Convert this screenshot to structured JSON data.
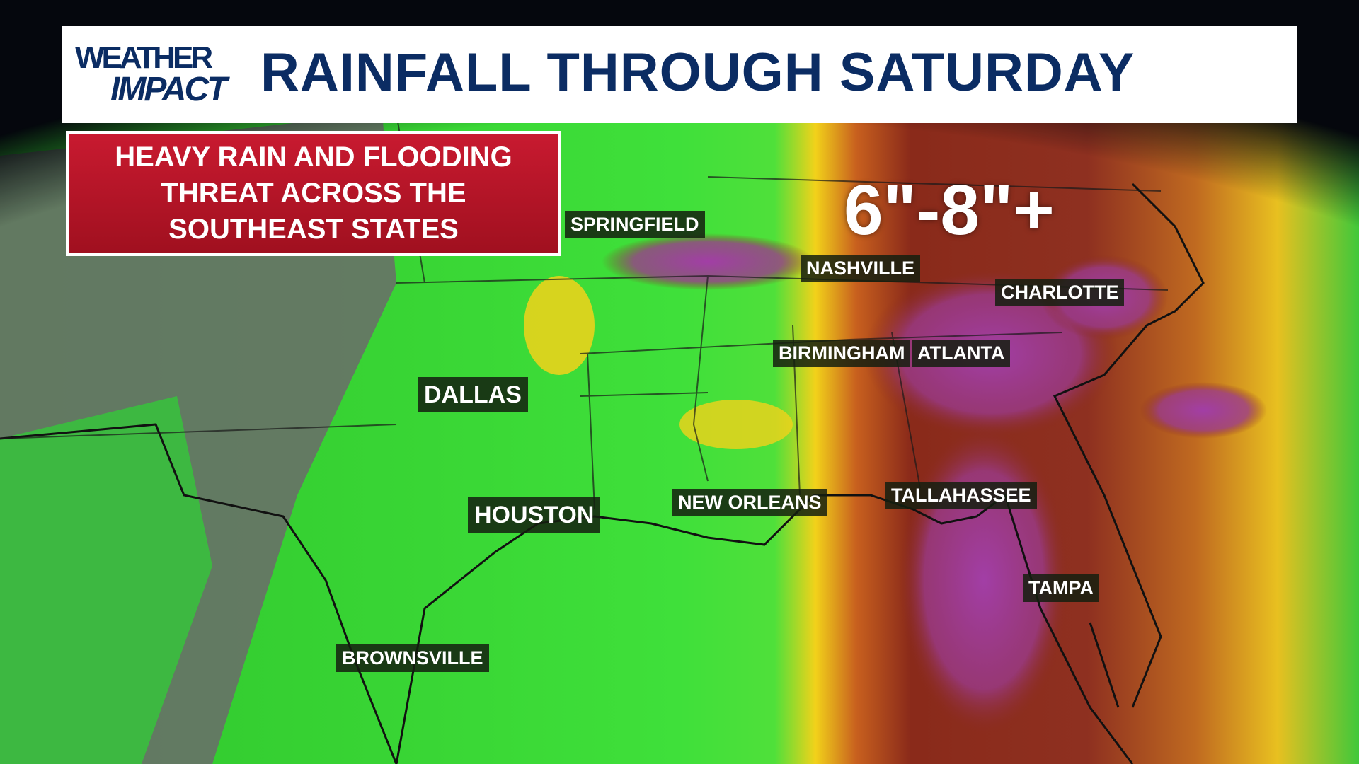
{
  "logo": {
    "line1": "WEATHER",
    "line2": "IMPACT"
  },
  "title": "RAINFALL THROUGH SATURDAY",
  "alert": {
    "lines": [
      "HEAVY RAIN AND FLOODING",
      "THREAT ACROSS THE",
      "SOUTHEAST STATES"
    ]
  },
  "rainfall_amount": "6\"-8\"+",
  "cities": [
    {
      "name": "SPRINGFIELD"
    },
    {
      "name": "NASHVILLE"
    },
    {
      "name": "CHARLOTTE"
    },
    {
      "name": "BIRMINGHAM"
    },
    {
      "name": "ATLANTA"
    },
    {
      "name": "DALLAS"
    },
    {
      "name": "HOUSTON"
    },
    {
      "name": "NEW ORLEANS"
    },
    {
      "name": "TALLAHASSEE"
    },
    {
      "name": "TAMPA"
    },
    {
      "name": "BROWNSVILLE"
    }
  ],
  "colors": {
    "light_rain": "#3fe03a",
    "moderate": "#f2d21a",
    "heavy": "#8a2a1a",
    "extreme": "#a23ea6",
    "no_rain": "#6b6b6b",
    "title_text": "#0b2c63",
    "alert_bg": "#c81a30"
  }
}
